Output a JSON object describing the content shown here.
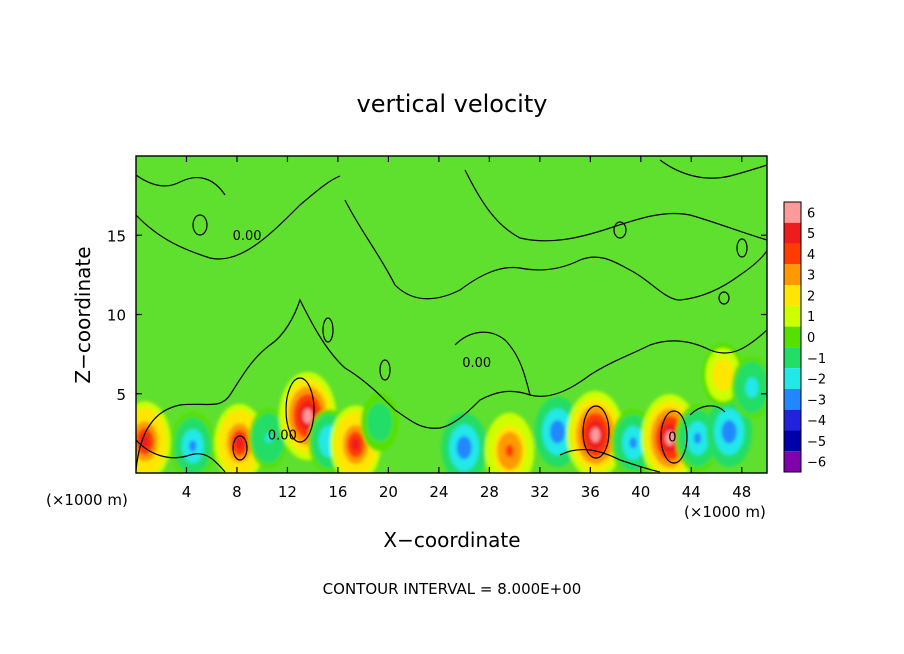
{
  "chart_data": {
    "type": "heatmap",
    "title": "vertical velocity",
    "xlabel": "X−coordinate",
    "ylabel": "Z−coordinate",
    "x_unit_left": "(×1000 m)",
    "x_unit_right": "(×1000 m)",
    "footer": "CONTOUR INTERVAL = 8.000E+00",
    "xlim": [
      0,
      50
    ],
    "ylim": [
      0,
      20
    ],
    "x_ticks": [
      4,
      8,
      12,
      16,
      20,
      24,
      28,
      32,
      36,
      40,
      44,
      48
    ],
    "y_ticks": [
      5,
      10,
      15
    ],
    "contour_labels": [
      {
        "text": "0.00",
        "x": 8.8,
        "z": 14.7
      },
      {
        "text": "0.00",
        "x": 11.6,
        "z": 2.1
      },
      {
        "text": "0.00",
        "x": 27.0,
        "z": 6.7
      },
      {
        "text": "0",
        "x": 42.5,
        "z": 2.0
      }
    ],
    "colorbar": {
      "levels": [
        6,
        5,
        4,
        3,
        2,
        1,
        0,
        -1,
        -2,
        -3,
        -4,
        -5,
        -6
      ],
      "labels": [
        "6",
        "5",
        "4",
        "3",
        "2",
        "1",
        "0",
        "−1",
        "−2",
        "−3",
        "−4",
        "−5",
        "−6"
      ],
      "colors": [
        "#ff9a9a",
        "#ee1c1c",
        "#ff3b00",
        "#ff9900",
        "#ffe600",
        "#ccff00",
        "#55e000",
        "#22dd66",
        "#22e8e8",
        "#2288ff",
        "#2222dd",
        "#0000aa",
        "#8000aa"
      ]
    },
    "background_color": "#5fe02e",
    "cells": [
      {
        "x": 0.7,
        "z": 2.0,
        "w": 0.8
      },
      {
        "x": 4.5,
        "z": 1.7,
        "w": -0.5
      },
      {
        "x": 8.2,
        "z": 1.9,
        "w": 0.75
      },
      {
        "x": 10.5,
        "z": 2.2,
        "w": -0.3
      },
      {
        "x": 13.6,
        "z": 3.6,
        "w": 1.0
      },
      {
        "x": 15.3,
        "z": 2.0,
        "w": -0.4
      },
      {
        "x": 17.4,
        "z": 1.8,
        "w": 0.75
      },
      {
        "x": 19.3,
        "z": 3.2,
        "w": -0.25
      },
      {
        "x": 26.0,
        "z": 1.6,
        "w": -0.55
      },
      {
        "x": 29.6,
        "z": 1.4,
        "w": 0.7
      },
      {
        "x": 33.4,
        "z": 2.6,
        "w": -0.55
      },
      {
        "x": 36.4,
        "z": 2.4,
        "w": 1.0
      },
      {
        "x": 39.4,
        "z": 1.9,
        "w": -0.5
      },
      {
        "x": 42.3,
        "z": 2.2,
        "w": 1.0
      },
      {
        "x": 44.5,
        "z": 2.2,
        "w": -0.5
      },
      {
        "x": 47.0,
        "z": 2.6,
        "w": -0.55
      },
      {
        "x": 46.5,
        "z": 6.2,
        "w": 0.4
      },
      {
        "x": 48.8,
        "z": 5.4,
        "w": -0.35
      }
    ]
  }
}
